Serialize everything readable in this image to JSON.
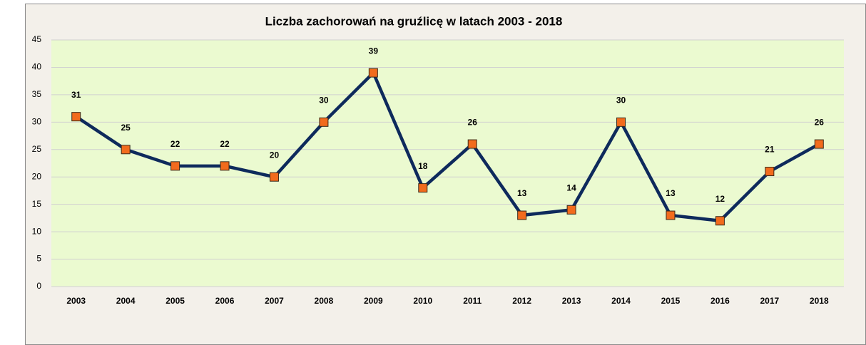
{
  "chart_data": {
    "type": "line",
    "title": "Liczba zachorowań na gruźlicę w latach 2003 - 2018",
    "categories": [
      "2003",
      "2004",
      "2005",
      "2006",
      "2007",
      "2008",
      "2009",
      "2010",
      "2011",
      "2012",
      "2013",
      "2014",
      "2015",
      "2016",
      "2017",
      "2018"
    ],
    "values": [
      31,
      25,
      22,
      22,
      20,
      30,
      39,
      18,
      26,
      13,
      14,
      30,
      13,
      12,
      21,
      26
    ],
    "color": "#0e2a5c",
    "marker_color": "#f26b1d",
    "ylim": [
      0,
      45
    ],
    "yticks": [
      0,
      5,
      10,
      15,
      20,
      25,
      30,
      35,
      40,
      45
    ],
    "grid": true
  }
}
